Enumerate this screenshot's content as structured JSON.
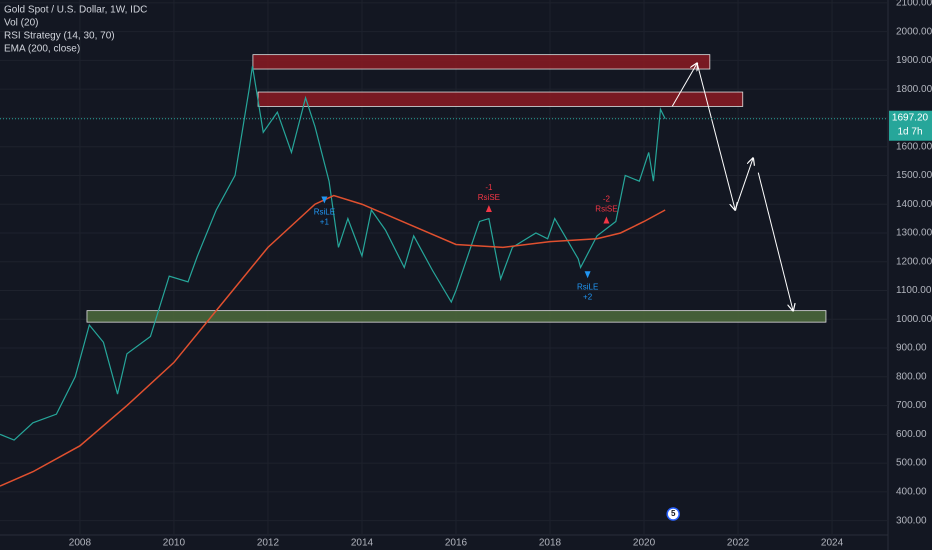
{
  "chart_data": {
    "type": "line",
    "title": "Gold Spot / U.S. Dollar, 1W, IDC",
    "indicators": [
      "Vol (20)",
      "RSI Strategy (14, 30, 70)"
    ],
    "xlim": [
      2006.3,
      2025.19
    ],
    "xticks": [
      2008,
      2010,
      2012,
      2014,
      2016,
      2018,
      2020,
      2022,
      2024
    ],
    "ylim": [
      250,
      2110
    ],
    "yticks": [
      {
        "value": 300,
        "label": "300.00"
      },
      {
        "value": 400,
        "label": "400.00"
      },
      {
        "value": 500,
        "label": "500.00"
      },
      {
        "value": 600,
        "label": "600.00"
      },
      {
        "value": 700,
        "label": "700.00"
      },
      {
        "value": 800,
        "label": "800.00"
      },
      {
        "value": 900,
        "label": "900.00"
      },
      {
        "value": 1000,
        "label": "1000.00"
      },
      {
        "value": 1100,
        "label": "1100.00"
      },
      {
        "value": 1200,
        "label": "1200.00"
      },
      {
        "value": 1300,
        "label": "1300.00"
      },
      {
        "value": 1400,
        "label": "1400.00"
      },
      {
        "value": 1500,
        "label": "1500.00"
      },
      {
        "value": 1600,
        "label": "1600.00"
      },
      {
        "value": 1700,
        "label": "1700.00"
      },
      {
        "value": 1800,
        "label": "1800.00"
      },
      {
        "value": 1900,
        "label": "1900.00"
      },
      {
        "value": 2000,
        "label": "2000.00"
      },
      {
        "value": 2100,
        "label": "2100.00"
      }
    ],
    "grid": true,
    "series": [
      {
        "color": "#26a69a",
        "x": [
          2006.3,
          2006.6,
          2007.0,
          2007.5,
          2007.9,
          2008.2,
          2008.5,
          2008.8,
          2009.0,
          2009.5,
          2009.9,
          2010.3,
          2010.5,
          2010.9,
          2011.3,
          2011.6,
          2011.67,
          2011.9,
          2012.2,
          2012.5,
          2012.8,
          2013.0,
          2013.3,
          2013.5,
          2013.7,
          2014.0,
          2014.2,
          2014.5,
          2014.9,
          2015.1,
          2015.5,
          2015.9,
          2016.0,
          2016.5,
          2016.7,
          2016.95,
          2017.2,
          2017.7,
          2017.95,
          2018.1,
          2018.6,
          2018.65,
          2019.0,
          2019.4,
          2019.6,
          2019.9,
          2020.1,
          2020.2,
          2020.35,
          2020.45
        ],
        "values": [
          600,
          580,
          640,
          670,
          800,
          980,
          920,
          740,
          880,
          940,
          1150,
          1130,
          1220,
          1380,
          1500,
          1800,
          1880,
          1650,
          1720,
          1580,
          1770,
          1670,
          1480,
          1250,
          1350,
          1220,
          1380,
          1310,
          1180,
          1290,
          1170,
          1060,
          1100,
          1340,
          1350,
          1140,
          1250,
          1300,
          1280,
          1350,
          1210,
          1180,
          1290,
          1340,
          1500,
          1480,
          1580,
          1480,
          1730,
          1697.2
        ]
      },
      {
        "name": "EMA (200, close)",
        "color": "#e0502f",
        "x": [
          2006.3,
          2007.0,
          2008.0,
          2009.0,
          2010.0,
          2011.0,
          2012.0,
          2013.0,
          2013.4,
          2014.0,
          2015.0,
          2016.0,
          2017.0,
          2018.0,
          2019.0,
          2019.5,
          2020.0,
          2020.45
        ],
        "values": [
          420,
          470,
          560,
          700,
          850,
          1050,
          1250,
          1400,
          1430,
          1400,
          1330,
          1260,
          1250,
          1270,
          1280,
          1300,
          1340,
          1380
        ]
      }
    ],
    "last_price": {
      "value": 1697.2,
      "label": "1697.20"
    },
    "countdown": "1d 7h",
    "badge": "5",
    "zones": [
      {
        "x": [
          2011.68,
          2021.4
        ],
        "y": [
          1870,
          1920
        ],
        "color": "#8b1a22"
      },
      {
        "x": [
          2011.79,
          2022.1
        ],
        "y": [
          1740,
          1790
        ],
        "color": "#8b1a22"
      },
      {
        "x": [
          2008.15,
          2023.87
        ],
        "y": [
          990,
          1030
        ],
        "color": "#4d6b3c"
      }
    ],
    "drawings": [
      {
        "x": [
          2020.6,
          2021.13
        ],
        "y": [
          1740,
          1890
        ]
      },
      {
        "x": [
          2021.13,
          2021.94
        ],
        "y": [
          1890,
          1380
        ]
      },
      {
        "x": [
          2021.94,
          2022.32
        ],
        "y": [
          1380,
          1560
        ]
      },
      {
        "x": [
          2022.43,
          2023.17
        ],
        "y": [
          1510,
          1030
        ]
      }
    ],
    "signals": [
      {
        "x": 2013.2,
        "y": 1420,
        "label": "RsiLE",
        "count": "+1",
        "color": "#2196f3"
      },
      {
        "x": 2016.7,
        "y": 1380,
        "label": "RsiSE",
        "count": "-1",
        "color": "#f23645"
      },
      {
        "x": 2018.8,
        "y": 1160,
        "label": "RsiLE",
        "count": "+2",
        "color": "#2196f3"
      },
      {
        "x": 2019.2,
        "y": 1340,
        "label": "RsiSE",
        "count": "-2",
        "color": "#f23645"
      }
    ]
  }
}
